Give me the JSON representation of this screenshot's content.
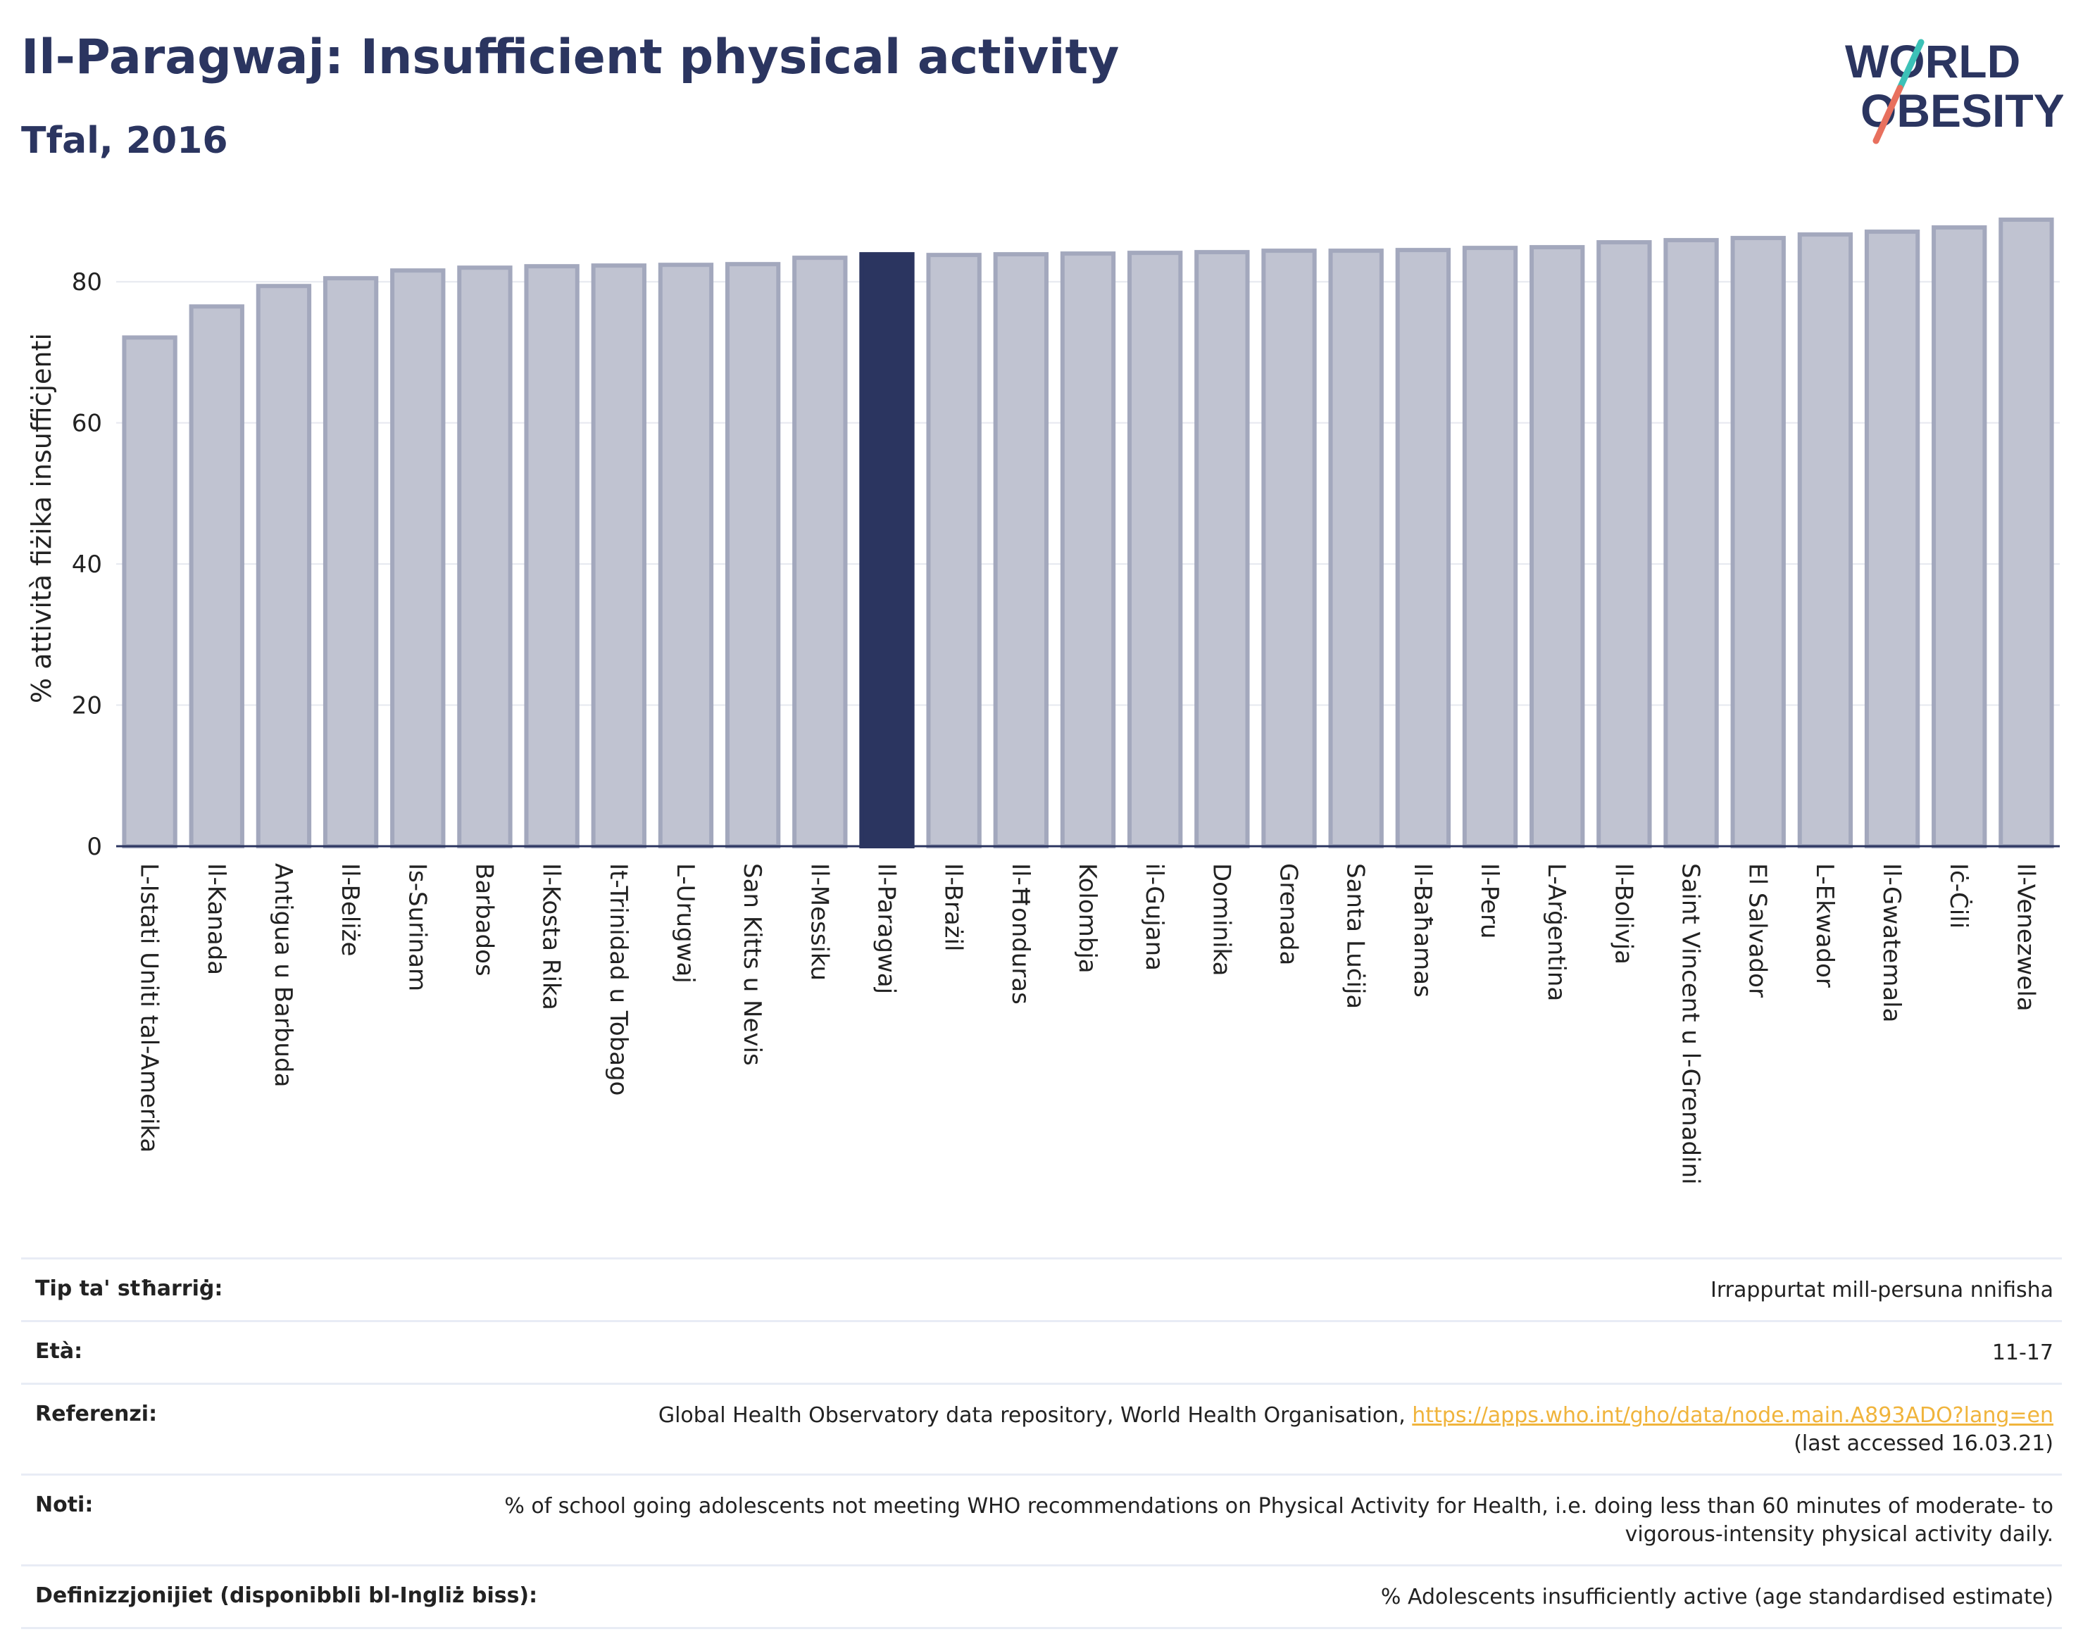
{
  "header": {
    "title": "Il-Paragwaj: Insufficient physical activity",
    "subtitle": "Tfal, 2016"
  },
  "logo": {
    "line1": "WORLD",
    "line2": "OBESITY",
    "colors": {
      "text": "#2b3560",
      "slash_top": "#3cc1b7",
      "slash_bottom": "#e8705e"
    }
  },
  "colors": {
    "bar": "#c0c3d1",
    "bar_border": "#a3a8bd",
    "highlight": "#2b3560",
    "grid": "#e6e8ef",
    "axis": "#2b3560"
  },
  "chart_data": {
    "type": "bar",
    "title": "",
    "xlabel": "",
    "ylabel": "% attività fiżika insuffiċjenti",
    "ylim": [
      0,
      90
    ],
    "yticks": [
      0,
      20,
      40,
      60,
      80
    ],
    "grid": true,
    "highlight_category": "Il-Paragwaj",
    "categories": [
      "L-Istati Uniti tal-Amerika",
      "Il-Kanada",
      "Antigua u Barbuda",
      "Il-Beliże",
      "Is-Surinam",
      "Barbados",
      "Il-Kosta Rika",
      "It-Trinidad u Tobago",
      "L-Urugwaj",
      "San Kitts u Nevis",
      "Il-Messiku",
      "Il-Paragwaj",
      "Il-Brażil",
      "Il-Ħonduras",
      "Kolombja",
      "il-Gujana",
      "Dominika",
      "Grenada",
      "Santa Luċija",
      "Il-Baħamas",
      "Il-Peru",
      "L-Arġentina",
      "Il-Bolivja",
      "Saint Vincent u l-Grenadini",
      "El Salvador",
      "L-Ekwador",
      "Il-Gwatemala",
      "Iċ-Ċili",
      "Il-Venezwela"
    ],
    "values": [
      72.1,
      76.5,
      79.4,
      80.5,
      81.6,
      82.0,
      82.2,
      82.3,
      82.4,
      82.5,
      83.4,
      83.9,
      83.8,
      83.9,
      84.0,
      84.1,
      84.2,
      84.4,
      84.4,
      84.5,
      84.8,
      84.9,
      85.6,
      85.9,
      86.2,
      86.7,
      87.1,
      87.7,
      88.8
    ]
  },
  "info": [
    {
      "label": "Tip ta' stħarriġ:",
      "value": "Irrappurtat mill-persuna nnifisha"
    },
    {
      "label": "Età:",
      "value": "11-17"
    },
    {
      "label": "Referenzi:",
      "value": "Global Health Observatory data repository, World Health Organisation, ",
      "link": "https://apps.who.int/gho/data/node.main.A893ADO?lang=en",
      "value2": "(last accessed 16.03.21)"
    },
    {
      "label": "Noti:",
      "value": "% of school going adolescents not meeting WHO recommendations on Physical Activity for Health, i.e. doing less than 60 minutes of moderate- to vigorous-intensity physical activity daily."
    },
    {
      "label": "Definizzjonijiet (disponibbli bl-Ingliż biss):",
      "value": "% Adolescents insufficiently active (age standardised estimate)"
    }
  ]
}
